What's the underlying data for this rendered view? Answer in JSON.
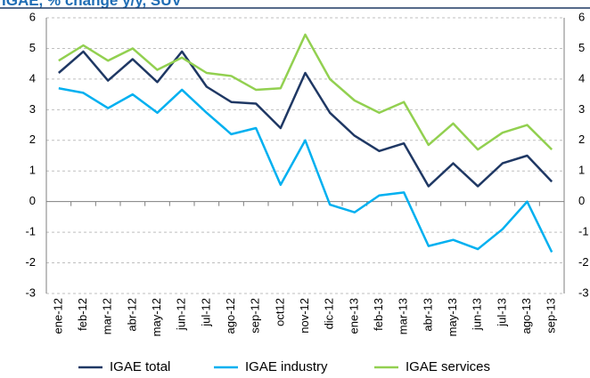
{
  "chart_data": {
    "type": "line",
    "title": "IGAE, % change y/y, SUV",
    "categories": [
      "ene-12",
      "feb-12",
      "mar-12",
      "abr-12",
      "may-12",
      "jun-12",
      "jul-12",
      "ago-12",
      "sep-12",
      "oct12",
      "nov-12",
      "dic-12",
      "ene-13",
      "feb-13",
      "mar-13",
      "abr-13",
      "may-13",
      "jun-13",
      "jul-13",
      "ago-13",
      "sep-13"
    ],
    "series": [
      {
        "name": "IGAE total",
        "color": "#1f3864",
        "values": [
          4.2,
          4.9,
          3.95,
          4.65,
          3.9,
          4.9,
          3.75,
          3.25,
          3.2,
          2.4,
          4.2,
          2.9,
          2.15,
          1.65,
          1.9,
          0.5,
          1.25,
          0.5,
          1.25,
          1.5,
          0.65
        ]
      },
      {
        "name": "IGAE industry",
        "color": "#00b0f0",
        "values": [
          3.7,
          3.55,
          3.05,
          3.5,
          2.9,
          3.65,
          2.9,
          2.2,
          2.4,
          0.55,
          2.0,
          -0.1,
          -0.35,
          0.2,
          0.3,
          -1.45,
          -1.25,
          -1.55,
          -0.9,
          0.0,
          -1.65
        ]
      },
      {
        "name": "IGAE services",
        "color": "#92d050",
        "values": [
          4.6,
          5.1,
          4.6,
          5.0,
          4.3,
          4.7,
          4.2,
          4.1,
          3.65,
          3.7,
          5.45,
          4.0,
          3.3,
          2.9,
          3.25,
          1.85,
          2.55,
          1.7,
          2.25,
          2.5,
          1.7
        ]
      }
    ],
    "ylim": [
      -3,
      6
    ],
    "yticks": [
      -3,
      -2,
      -1,
      0,
      1,
      2,
      3,
      4,
      5,
      6
    ],
    "y2lim": [
      -3,
      6
    ],
    "y2ticks": [
      -3,
      -2,
      -1,
      0,
      1,
      2,
      3,
      4,
      5,
      6
    ],
    "grid": true
  }
}
